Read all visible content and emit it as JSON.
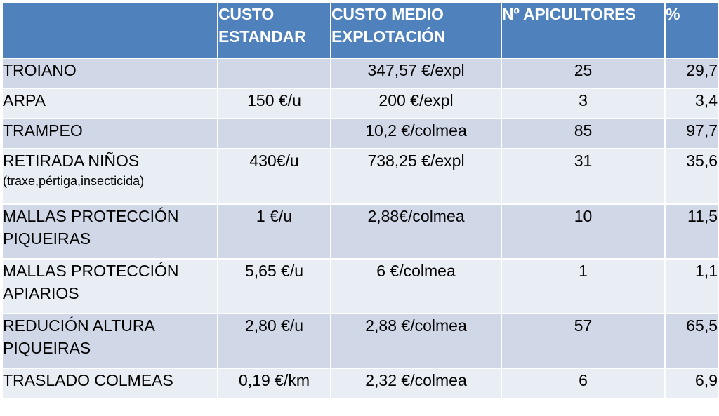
{
  "header": {
    "col1": "",
    "col2_line1": "CUSTO",
    "col2_line2": "ESTANDAR",
    "col3_line1": "CUSTO MEDIO",
    "col3_line2": "EXPLOTACIÓN",
    "col4": "Nº APICULTORES",
    "col5": "%"
  },
  "rows": [
    {
      "name1": "TROIANO",
      "name2": "",
      "sub": "",
      "estandar": "",
      "medio": "347,57 €/expl",
      "apicultores": "25",
      "pct": "29,7"
    },
    {
      "name1": "ARPA",
      "name2": "",
      "sub": "",
      "estandar": "150 €/u",
      "medio": "200 €/expl",
      "apicultores": "3",
      "pct": "3,4"
    },
    {
      "name1": "TRAMPEO",
      "name2": "",
      "sub": "",
      "estandar": "",
      "medio": "10,2 €/colmea",
      "apicultores": "85",
      "pct": "97,7"
    },
    {
      "name1": "RETIRADA NIÑOS",
      "name2": "",
      "sub": "(traxe,pértiga,insecticida)",
      "estandar": "430€/u",
      "medio": "738,25 €/expl",
      "apicultores": "31",
      "pct": "35,6"
    },
    {
      "name1": "MALLAS PROTECCIÓN",
      "name2": "PIQUEIRAS",
      "sub": "",
      "estandar": "1 €/u",
      "medio": "2,88€/colmea",
      "apicultores": "10",
      "pct": "11,5"
    },
    {
      "name1": "MALLAS PROTECCIÓN",
      "name2": "APIARIOS",
      "sub": "",
      "estandar": "5,65 €/u",
      "medio": "6 €/colmea",
      "apicultores": "1",
      "pct": "1,1"
    },
    {
      "name1": "REDUCIÓN ALTURA",
      "name2": "PIQUEIRAS",
      "sub": "",
      "estandar": "2,80 €/u",
      "medio": "2,88 €/colmea",
      "apicultores": "57",
      "pct": "65,5"
    },
    {
      "name1": "TRASLADO COLMEAS",
      "name2": "",
      "sub": "",
      "estandar": "0,19 €/km",
      "medio": "2,32 €/colmea",
      "apicultores": "6",
      "pct": "6,9"
    }
  ],
  "colors": {
    "header_bg": "#4f81bd",
    "row_odd_bg": "#d0d8e8",
    "row_even_bg": "#e9edf4"
  }
}
